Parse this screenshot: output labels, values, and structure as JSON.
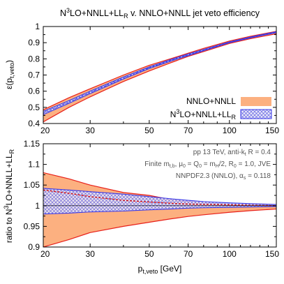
{
  "chart_data": {
    "type": "area",
    "title": {
      "pre": "N",
      "sup": "3",
      "post": "LO+NNLL+LL",
      "sub": "R",
      "tail": " v. NNLO+NNLL jet veto efficiency"
    },
    "xlabel": {
      "pre": "p",
      "sub": "t,veto",
      "post": " [GeV]"
    },
    "x_scale": "log",
    "xlim": [
      20,
      150
    ],
    "x_ticks": [
      20,
      30,
      50,
      70,
      100,
      150
    ],
    "top": {
      "ylabel": {
        "pre": "ε(p",
        "sub": "t,veto",
        "post": ")"
      },
      "ylim": [
        0.4,
        1.0
      ],
      "y_ticks": [
        0.4,
        0.5,
        0.6,
        0.7,
        0.8,
        0.9,
        1.0
      ],
      "y_tick_labels": [
        "0.4",
        "0.5",
        "0.6",
        "0.7",
        "0.8",
        "0.9",
        "1"
      ],
      "x": [
        20,
        25,
        30,
        40,
        50,
        60,
        70,
        80,
        100,
        120,
        150
      ],
      "series": [
        {
          "name": "NNLO+NNLL",
          "style": "band-orange",
          "lower": [
            0.41,
            0.5,
            0.565,
            0.66,
            0.725,
            0.775,
            0.815,
            0.845,
            0.895,
            0.925,
            0.955
          ],
          "upper": [
            0.485,
            0.56,
            0.615,
            0.7,
            0.76,
            0.8,
            0.835,
            0.865,
            0.91,
            0.94,
            0.97
          ]
        },
        {
          "name": "N3LO+NNLL+LLR",
          "legend": {
            "pre": "N",
            "sup": "3",
            "post": "LO+NNLL+LL",
            "sub": "R"
          },
          "style": "band-blue-hatched",
          "lower": [
            0.455,
            0.525,
            0.585,
            0.675,
            0.74,
            0.785,
            0.82,
            0.85,
            0.9,
            0.93,
            0.962
          ],
          "upper": [
            0.475,
            0.542,
            0.6,
            0.688,
            0.75,
            0.795,
            0.83,
            0.858,
            0.905,
            0.935,
            0.968
          ],
          "central": [
            0.465,
            0.533,
            0.592,
            0.681,
            0.745,
            0.79,
            0.825,
            0.854,
            0.902,
            0.932,
            0.965
          ]
        }
      ]
    },
    "bottom": {
      "ylabel": {
        "pre": "ratio to N",
        "sup": "3",
        "post": "LO+NNLL+LL",
        "sub": "R"
      },
      "ylim": [
        0.9,
        1.15
      ],
      "y_ticks": [
        0.9,
        0.95,
        1.0,
        1.05,
        1.1,
        1.15
      ],
      "y_tick_labels": [
        "0.9",
        "0.95",
        "1",
        "1.05",
        "1.1",
        "1.15"
      ],
      "x": [
        20,
        25,
        30,
        40,
        50,
        60,
        70,
        80,
        100,
        120,
        150
      ],
      "series": [
        {
          "name": "NNLO+NNLL",
          "style": "band-orange",
          "lower": [
            0.9,
            0.918,
            0.935,
            0.95,
            0.96,
            0.968,
            0.974,
            0.978,
            0.984,
            0.988,
            0.992
          ],
          "upper": [
            1.08,
            1.065,
            1.05,
            1.032,
            1.025,
            1.015,
            1.01,
            1.007,
            1.004,
            1.002,
            1.001
          ],
          "central": [
            1.038,
            1.03,
            1.022,
            1.013,
            1.009,
            1.006,
            1.004,
            1.003,
            1.002,
            1.001,
            1.0
          ]
        },
        {
          "name": "N3LO+NNLL+LLR",
          "style": "band-blue-hatched",
          "lower": [
            0.98,
            0.982,
            0.985,
            0.987,
            0.99,
            0.992,
            0.994,
            0.995,
            0.996,
            0.997,
            0.998
          ],
          "upper": [
            1.042,
            1.038,
            1.034,
            1.028,
            1.022,
            1.017,
            1.013,
            1.01,
            1.007,
            1.005,
            1.003
          ]
        }
      ],
      "annotations": [
        {
          "pre": "pp 13 TeV, anti-k",
          "sub": "t",
          "post": " R = 0.4"
        },
        {
          "pre": "Finite m",
          "sub": "t,b",
          "post": ", μ",
          "sub2": "0",
          "post2": " = Q",
          "sub3": "0",
          "post3": " = m",
          "sub4": "H",
          "post4": "/2, R",
          "sub5": "0",
          "post5": " = 1.0, JVE"
        },
        {
          "pre": "NNPDF2.3 (NNLO), α",
          "sub": "s",
          "post": " = 0.118"
        }
      ]
    },
    "colors": {
      "orange_fill": "#fcb080",
      "orange_line": "#e8201a",
      "blue_line": "#3a3ae8",
      "blue_hatch": "#6060e0",
      "central_red": "#d81010"
    },
    "grid": false,
    "legend_position": "bottom-right of top panel"
  }
}
